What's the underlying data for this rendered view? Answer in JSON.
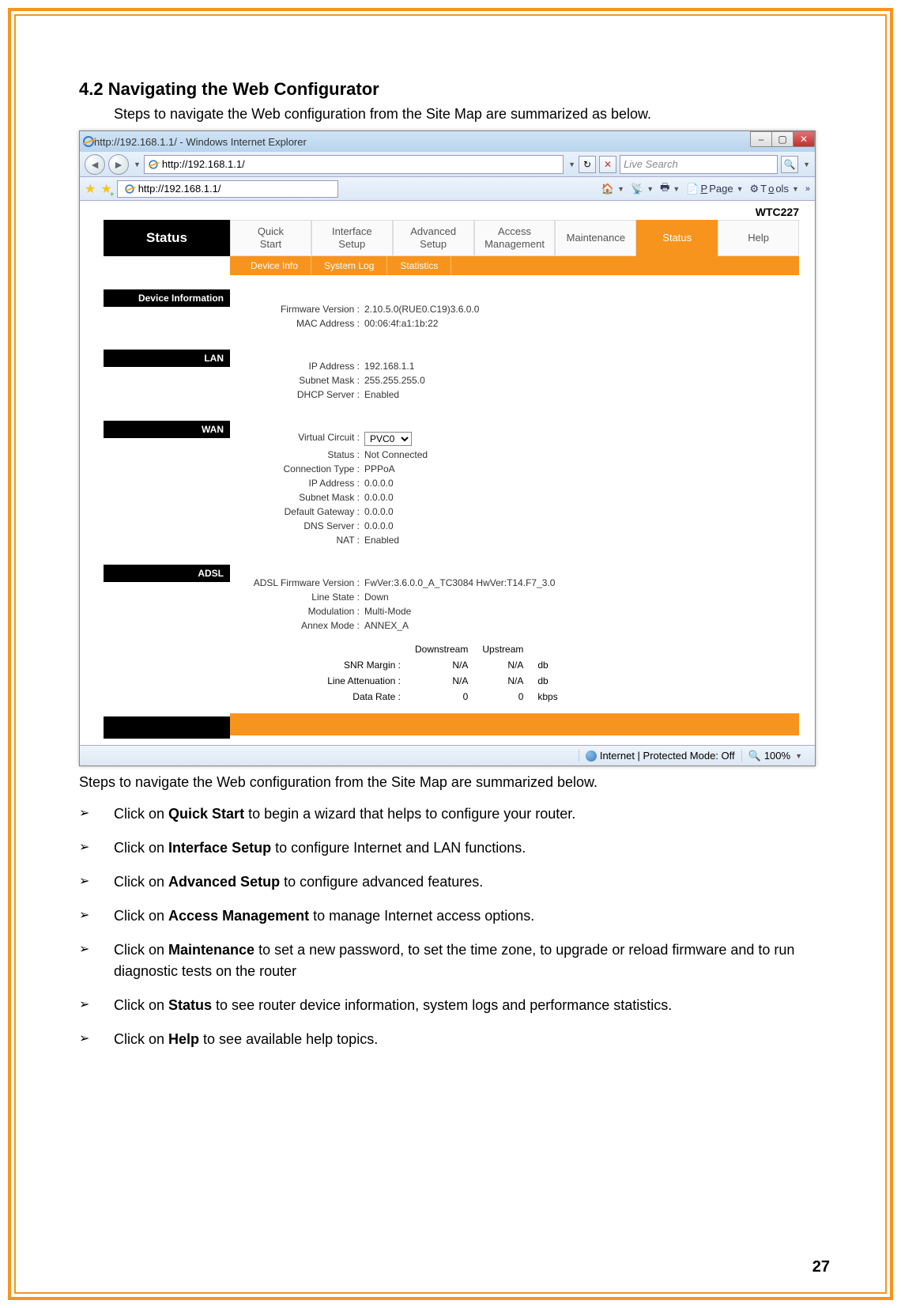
{
  "doc": {
    "section_heading": "4.2 Navigating the Web Configurator",
    "intro": "Steps to navigate the Web configuration from the Site Map are summarized as below.",
    "below_text": "Steps to navigate the Web configuration from the Site Map are summarized below.",
    "page_number": "27",
    "steps": [
      {
        "pre": "Click on ",
        "bold": "Quick Start",
        "post": " to begin a wizard that helps to configure your router."
      },
      {
        "pre": "Click on ",
        "bold": "Interface Setup",
        "post": " to configure Internet and LAN functions."
      },
      {
        "pre": "Click on ",
        "bold": "Advanced Setup",
        "post": " to configure advanced features."
      },
      {
        "pre": "Click on ",
        "bold": "Access Management",
        "post": " to manage Internet access options."
      },
      {
        "pre": "Click on ",
        "bold": "Maintenance",
        "post": " to set a new password, to set the time zone, to upgrade or reload firmware and to run diagnostic tests on the router"
      },
      {
        "pre": "Click on ",
        "bold": "Status",
        "post": " to see router device information, system logs and performance statistics."
      },
      {
        "pre": "Click on ",
        "bold": "Help",
        "post": " to see available help topics."
      }
    ]
  },
  "browser": {
    "title": "http://192.168.1.1/ - Windows Internet Explorer",
    "address": "http://192.168.1.1/",
    "tab_title": "http://192.168.1.1/",
    "search_placeholder": "Live Search",
    "toolbar": {
      "page": "Page",
      "tools": "Tools"
    },
    "statusbar": {
      "mode": "Internet | Protected Mode: Off",
      "zoom": "100%"
    }
  },
  "router": {
    "model": "WTC227",
    "topnav": [
      "Quick Start",
      "Interface Setup",
      "Advanced Setup",
      "Access Management",
      "Maintenance",
      "Status",
      "Help"
    ],
    "topnav_active_index": 5,
    "subnav": [
      "Device Info",
      "System Log",
      "Statistics"
    ],
    "status_label": "Status",
    "sections": {
      "device_info_label": "Device Information",
      "lan_label": "LAN",
      "wan_label": "WAN",
      "adsl_label": "ADSL"
    },
    "device_info": {
      "firmware_label": "Firmware Version :",
      "firmware": "2.10.5.0(RUE0.C19)3.6.0.0",
      "mac_label": "MAC Address :",
      "mac": "00:06:4f:a1:1b:22"
    },
    "lan": {
      "ip_label": "IP Address :",
      "ip": "192.168.1.1",
      "mask_label": "Subnet Mask :",
      "mask": "255.255.255.0",
      "dhcp_label": "DHCP Server :",
      "dhcp": "Enabled"
    },
    "wan": {
      "vc_label": "Virtual Circuit :",
      "vc": "PVC0",
      "status_label": "Status :",
      "status": "Not Connected",
      "ct_label": "Connection Type :",
      "ct": "PPPoA",
      "ip_label": "IP Address :",
      "ip": "0.0.0.0",
      "mask_label": "Subnet Mask :",
      "mask": "0.0.0.0",
      "gw_label": "Default Gateway :",
      "gw": "0.0.0.0",
      "dns_label": "DNS Server :",
      "dns": "0.0.0.0",
      "nat_label": "NAT :",
      "nat": "Enabled"
    },
    "adsl": {
      "fw_label": "ADSL Firmware Version :",
      "fw": "FwVer:3.6.0.0_A_TC3084 HwVer:T14.F7_3.0",
      "ls_label": "Line State :",
      "ls": "Down",
      "mod_label": "Modulation :",
      "mod": "Multi-Mode",
      "am_label": "Annex Mode :",
      "am": "ANNEX_A",
      "cols": {
        "ds": "Downstream",
        "us": "Upstream"
      },
      "rows": [
        {
          "label": "SNR Margin :",
          "ds": "N/A",
          "us": "N/A",
          "unit": "db"
        },
        {
          "label": "Line Attenuation :",
          "ds": "N/A",
          "us": "N/A",
          "unit": "db"
        },
        {
          "label": "Data Rate :",
          "ds": "0",
          "us": "0",
          "unit": "kbps"
        }
      ]
    }
  },
  "colors": {
    "orange": "#f7941d",
    "black": "#000000"
  }
}
